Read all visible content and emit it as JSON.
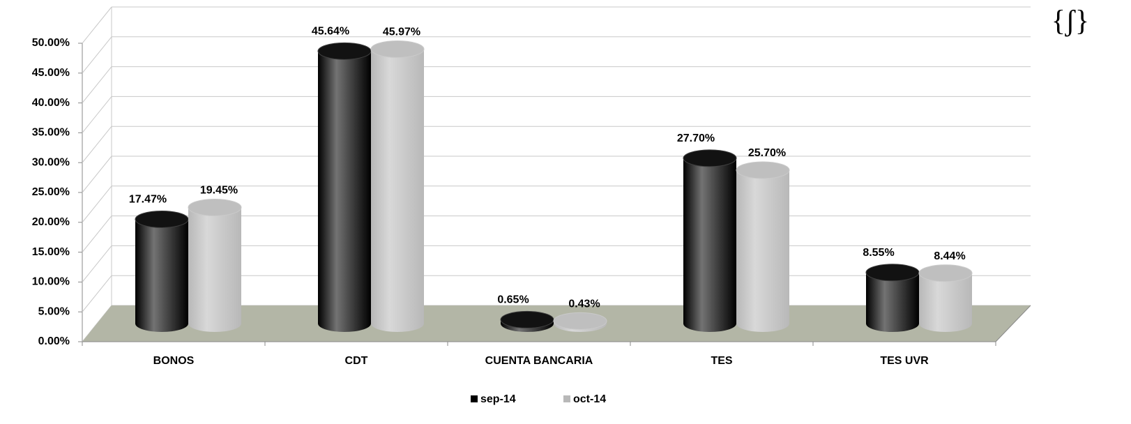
{
  "chart_data": {
    "type": "bar3d",
    "logo": "{ʃ}",
    "categories": [
      "BONOS",
      "CDT",
      "CUENTA BANCARIA",
      "TES",
      "TES UVR"
    ],
    "series": [
      {
        "name": "sep-14",
        "color": "#000000",
        "values": [
          17.47,
          45.64,
          0.65,
          27.7,
          8.55
        ],
        "value_labels": [
          "17.47%",
          "45.64%",
          "0.65%",
          "27.70%",
          "8.55%"
        ]
      },
      {
        "name": "oct-14",
        "color": "#b8b8b8",
        "values": [
          19.45,
          45.97,
          0.43,
          25.7,
          8.44
        ],
        "value_labels": [
          "19.45%",
          "45.97%",
          "0.43%",
          "25.70%",
          "8.44%"
        ]
      }
    ],
    "ylim": [
      0,
      50
    ],
    "yticks": [
      {
        "value": 0,
        "label": "0.00%"
      },
      {
        "value": 5,
        "label": "5.00%"
      },
      {
        "value": 10,
        "label": "10.00%"
      },
      {
        "value": 15,
        "label": "15.00%"
      },
      {
        "value": 20,
        "label": "20.00%"
      },
      {
        "value": 25,
        "label": "25.00%"
      },
      {
        "value": 30,
        "label": "30.00%"
      },
      {
        "value": 35,
        "label": "35.00%"
      },
      {
        "value": 40,
        "label": "40.00%"
      },
      {
        "value": 45,
        "label": "45.00%"
      },
      {
        "value": 50,
        "label": "50.00%"
      }
    ],
    "grid": true,
    "floor_color": "#b3b6a6",
    "legend": "bottom"
  }
}
